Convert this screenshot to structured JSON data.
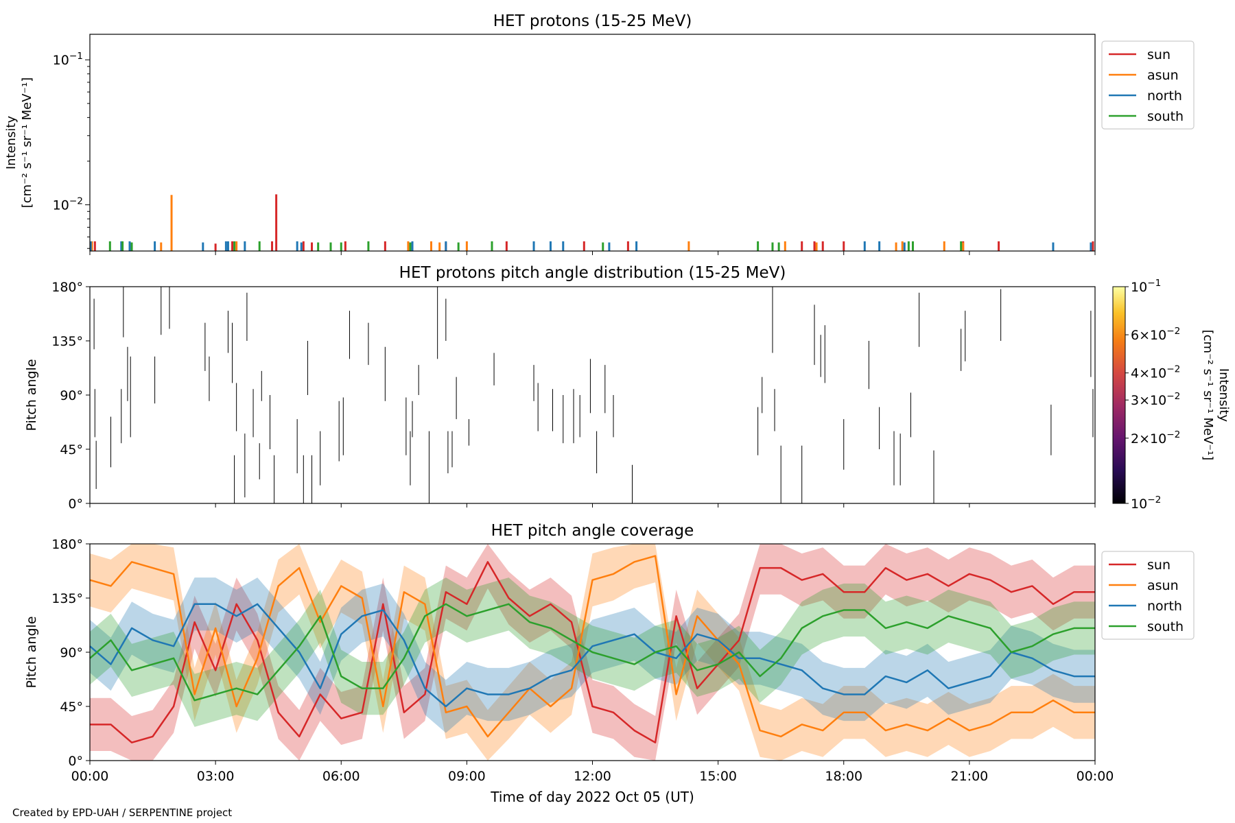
{
  "footer": {
    "credit": "Created by EPD-UAH / SERPENTINE project"
  },
  "colors": {
    "sun": "#d62728",
    "asun": "#ff7f0e",
    "north": "#1f77b4",
    "south": "#2ca02c"
  },
  "chart_data": [
    {
      "type": "bar",
      "title": "HET protons (15-25 MeV)",
      "ylabel": [
        "Intensity",
        "[cm⁻² s⁻¹ sr⁻¹ MeV⁻¹]"
      ],
      "yscale": "log",
      "ylim": [
        0.0048,
        0.15
      ],
      "yticks": [
        {
          "value": 0.1,
          "base": "10",
          "exp": "−1"
        },
        {
          "value": 0.01,
          "base": "10",
          "exp": "−2"
        }
      ],
      "xlim": [
        0,
        24
      ],
      "legend": {
        "placement": "outside-right-top",
        "entries": [
          "sun",
          "asun",
          "north",
          "south"
        ]
      },
      "series": [
        {
          "name": "sun",
          "x": [
            0.12,
            3.0,
            3.4,
            4.35,
            4.45,
            5.1,
            5.3,
            6.1,
            7.05,
            8.5,
            9.95,
            11.8,
            12.85,
            17.0,
            17.3,
            17.5,
            18.0,
            20.85,
            21.7,
            23.95
          ],
          "values": [
            0.0056,
            0.0054,
            0.0056,
            0.0056,
            0.0118,
            0.0056,
            0.0055,
            0.0056,
            0.0056,
            0.0055,
            0.0056,
            0.0056,
            0.0056,
            0.0056,
            0.0056,
            0.0056,
            0.0056,
            0.0056,
            0.0056,
            0.0056
          ]
        },
        {
          "name": "asun",
          "x": [
            0.05,
            1.7,
            1.95,
            3.5,
            7.6,
            8.15,
            8.35,
            9.0,
            14.3,
            16.6,
            17.35,
            19.25,
            19.4,
            20.4,
            20.85
          ],
          "values": [
            0.0056,
            0.0055,
            0.0117,
            0.0056,
            0.0056,
            0.0056,
            0.0055,
            0.0056,
            0.0056,
            0.0056,
            0.0055,
            0.0055,
            0.0056,
            0.0056,
            0.0055
          ]
        },
        {
          "name": "north",
          "x": [
            0.02,
            0.75,
            0.95,
            1.55,
            2.7,
            3.25,
            3.3,
            3.7,
            4.95,
            5.05,
            7.7,
            8.5,
            10.6,
            11.0,
            11.3,
            12.4,
            13.05,
            18.5,
            18.85,
            19.45,
            23.0,
            23.9
          ],
          "values": [
            0.0056,
            0.0056,
            0.0056,
            0.0056,
            0.0055,
            0.0056,
            0.0056,
            0.0056,
            0.0056,
            0.0055,
            0.0056,
            0.0056,
            0.0056,
            0.0056,
            0.0056,
            0.0055,
            0.0056,
            0.0056,
            0.0056,
            0.0055,
            0.0055,
            0.0055
          ]
        },
        {
          "name": "south",
          "x": [
            0.48,
            0.78,
            1.0,
            3.45,
            4.05,
            5.45,
            5.75,
            6.0,
            6.65,
            7.65,
            8.8,
            9.6,
            12.25,
            15.95,
            16.3,
            16.45,
            19.55,
            19.65,
            20.8
          ],
          "values": [
            0.0056,
            0.0056,
            0.0055,
            0.0056,
            0.0056,
            0.0055,
            0.0055,
            0.0055,
            0.0056,
            0.0055,
            0.0055,
            0.0056,
            0.0055,
            0.0056,
            0.0055,
            0.0055,
            0.0056,
            0.0056,
            0.0056
          ]
        }
      ]
    },
    {
      "type": "heatmap",
      "title": "HET protons pitch angle distribution (15-25 MeV)",
      "ylabel": "Pitch angle",
      "ylim": [
        0,
        180
      ],
      "yticks": [
        "0°",
        "45°",
        "90°",
        "135°",
        "180°"
      ],
      "xlim": [
        0,
        24
      ],
      "colorbar": {
        "label": "Intensity",
        "units": "[cm⁻² s⁻¹ sr⁻¹ MeV⁻¹]",
        "scale": "log",
        "range": [
          0.01,
          0.1
        ],
        "ticks": [
          {
            "value": 0.1,
            "mant": "",
            "exp": "−1"
          },
          {
            "value": 0.06,
            "mant": "6",
            "exp": "−2"
          },
          {
            "value": 0.04,
            "mant": "4",
            "exp": "−2"
          },
          {
            "value": 0.03,
            "mant": "3",
            "exp": "−2"
          },
          {
            "value": 0.02,
            "mant": "2",
            "exp": "−2"
          },
          {
            "value": 0.01,
            "mant": "",
            "exp": "−2"
          }
        ]
      },
      "segments": [
        [
          0.1,
          128,
          170
        ],
        [
          0.12,
          55,
          95
        ],
        [
          0.15,
          12,
          52
        ],
        [
          0.5,
          30,
          72
        ],
        [
          0.75,
          50,
          95
        ],
        [
          0.8,
          138,
          180
        ],
        [
          0.9,
          85,
          130
        ],
        [
          0.97,
          55,
          122
        ],
        [
          1.55,
          83,
          122
        ],
        [
          1.7,
          140,
          180
        ],
        [
          1.9,
          145,
          180
        ],
        [
          2.75,
          110,
          150
        ],
        [
          2.85,
          85,
          122
        ],
        [
          3.3,
          125,
          160
        ],
        [
          3.4,
          100,
          150
        ],
        [
          3.45,
          0,
          40
        ],
        [
          3.5,
          60,
          100
        ],
        [
          3.7,
          5,
          58
        ],
        [
          3.75,
          135,
          175
        ],
        [
          3.9,
          55,
          95
        ],
        [
          4.05,
          20,
          50
        ],
        [
          4.1,
          85,
          110
        ],
        [
          4.3,
          45,
          90
        ],
        [
          4.4,
          0,
          40
        ],
        [
          4.95,
          25,
          70
        ],
        [
          5.1,
          0,
          40
        ],
        [
          5.2,
          90,
          135
        ],
        [
          5.3,
          0,
          40
        ],
        [
          5.5,
          15,
          60
        ],
        [
          5.95,
          35,
          85
        ],
        [
          6.05,
          40,
          88
        ],
        [
          6.2,
          120,
          160
        ],
        [
          6.65,
          115,
          150
        ],
        [
          7.05,
          85,
          130
        ],
        [
          7.55,
          40,
          88
        ],
        [
          7.65,
          15,
          60
        ],
        [
          7.7,
          55,
          85
        ],
        [
          7.85,
          90,
          115
        ],
        [
          8.1,
          0,
          60
        ],
        [
          8.3,
          120,
          180
        ],
        [
          8.5,
          135,
          170
        ],
        [
          8.55,
          25,
          60
        ],
        [
          8.65,
          30,
          60
        ],
        [
          8.75,
          70,
          105
        ],
        [
          9.05,
          48,
          70
        ],
        [
          9.65,
          98,
          125
        ],
        [
          10.6,
          85,
          115
        ],
        [
          10.7,
          60,
          100
        ],
        [
          11.05,
          60,
          95
        ],
        [
          11.3,
          50,
          90
        ],
        [
          11.55,
          50,
          95
        ],
        [
          11.7,
          55,
          90
        ],
        [
          11.95,
          75,
          120
        ],
        [
          12.1,
          25,
          60
        ],
        [
          12.3,
          75,
          115
        ],
        [
          12.5,
          55,
          90
        ],
        [
          12.95,
          0,
          32
        ],
        [
          15.95,
          40,
          80
        ],
        [
          16.05,
          75,
          105
        ],
        [
          16.3,
          125,
          180
        ],
        [
          16.35,
          60,
          95
        ],
        [
          16.5,
          0,
          48
        ],
        [
          17.0,
          0,
          48
        ],
        [
          17.3,
          115,
          165
        ],
        [
          17.45,
          105,
          140
        ],
        [
          17.55,
          100,
          148
        ],
        [
          18.0,
          28,
          70
        ],
        [
          18.6,
          95,
          135
        ],
        [
          18.85,
          45,
          80
        ],
        [
          19.2,
          15,
          60
        ],
        [
          19.35,
          15,
          58
        ],
        [
          19.6,
          55,
          92
        ],
        [
          19.8,
          130,
          175
        ],
        [
          20.15,
          0,
          44
        ],
        [
          20.8,
          110,
          145
        ],
        [
          20.9,
          118,
          160
        ],
        [
          21.75,
          135,
          178
        ],
        [
          22.95,
          40,
          82
        ],
        [
          23.9,
          105,
          160
        ],
        [
          23.95,
          55,
          95
        ]
      ]
    },
    {
      "type": "area",
      "title": "HET pitch angle coverage",
      "xlabel": "Time of day 2022 Oct 05 (UT)",
      "ylabel": "Pitch angle",
      "ylim": [
        0,
        180
      ],
      "yticks": [
        "0°",
        "45°",
        "90°",
        "135°",
        "180°"
      ],
      "xlim": [
        0,
        24
      ],
      "xticks": [
        "00:00",
        "03:00",
        "06:00",
        "09:00",
        "12:00",
        "15:00",
        "18:00",
        "21:00",
        "00:00"
      ],
      "legend": {
        "placement": "outside-right-top",
        "entries": [
          "sun",
          "asun",
          "north",
          "south"
        ]
      },
      "band_halfwidth": 22,
      "x": [
        0,
        0.5,
        1,
        1.5,
        2,
        2.5,
        3,
        3.5,
        4,
        4.5,
        5,
        5.5,
        6,
        6.5,
        7,
        7.5,
        8,
        8.5,
        9,
        9.5,
        10,
        10.5,
        11,
        11.5,
        12,
        12.5,
        13,
        13.5,
        14,
        14.5,
        15,
        15.5,
        16,
        16.5,
        17,
        17.5,
        18,
        18.5,
        19,
        19.5,
        20,
        20.5,
        21,
        21.5,
        22,
        22.5,
        23,
        23.5,
        24
      ],
      "series": [
        {
          "name": "sun",
          "values": [
            30,
            30,
            15,
            20,
            45,
            115,
            75,
            130,
            100,
            40,
            20,
            55,
            35,
            40,
            130,
            40,
            55,
            140,
            130,
            165,
            135,
            120,
            130,
            115,
            45,
            40,
            25,
            15,
            120,
            60,
            80,
            100,
            160,
            160,
            150,
            155,
            140,
            140,
            160,
            150,
            155,
            145,
            155,
            150,
            140,
            145,
            130,
            140,
            140
          ]
        },
        {
          "name": "asun",
          "values": [
            150,
            145,
            165,
            160,
            155,
            55,
            110,
            45,
            85,
            145,
            160,
            115,
            145,
            135,
            45,
            140,
            130,
            40,
            45,
            20,
            40,
            60,
            45,
            60,
            150,
            155,
            165,
            170,
            55,
            120,
            100,
            80,
            25,
            20,
            30,
            25,
            40,
            40,
            25,
            30,
            25,
            35,
            25,
            30,
            40,
            40,
            50,
            40,
            40
          ]
        },
        {
          "name": "north",
          "values": [
            95,
            80,
            110,
            100,
            95,
            130,
            130,
            120,
            130,
            110,
            90,
            60,
            105,
            120,
            125,
            100,
            60,
            45,
            60,
            55,
            55,
            60,
            70,
            75,
            95,
            100,
            105,
            90,
            85,
            105,
            100,
            85,
            85,
            80,
            75,
            60,
            55,
            55,
            70,
            65,
            75,
            60,
            65,
            70,
            90,
            85,
            75,
            70,
            70
          ]
        },
        {
          "name": "south",
          "values": [
            85,
            100,
            75,
            80,
            85,
            50,
            55,
            60,
            55,
            75,
            95,
            120,
            70,
            60,
            60,
            85,
            120,
            130,
            120,
            125,
            130,
            115,
            110,
            100,
            90,
            85,
            80,
            90,
            95,
            75,
            80,
            90,
            70,
            85,
            110,
            120,
            125,
            125,
            110,
            115,
            110,
            120,
            115,
            110,
            90,
            95,
            105,
            110,
            110
          ]
        }
      ]
    }
  ]
}
